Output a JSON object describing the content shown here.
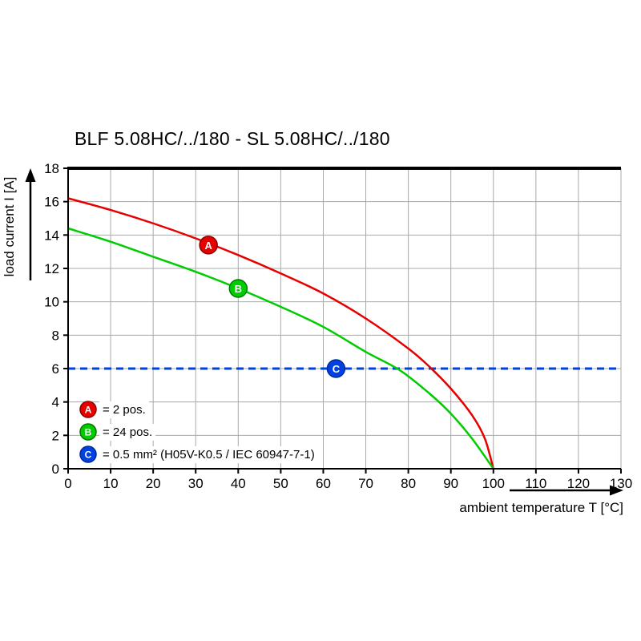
{
  "title": "BLF 5.08HC/../180 - SL 5.08HC/../180",
  "chart_data": {
    "type": "line",
    "title": "BLF 5.08HC/../180 - SL 5.08HC/../180",
    "xlabel": "ambient temperature T [°C]",
    "ylabel": "load current I [A]",
    "xlim": [
      0,
      130
    ],
    "ylim": [
      0,
      18
    ],
    "xticks": [
      0,
      10,
      20,
      30,
      40,
      50,
      60,
      70,
      80,
      90,
      100,
      110,
      120,
      130
    ],
    "yticks": [
      0,
      2,
      4,
      6,
      8,
      10,
      12,
      14,
      16,
      18
    ],
    "grid": true,
    "grid_color": "#a8a8a8",
    "axis_color": "#000000",
    "legend_position": "inside-bottom-left",
    "series": [
      {
        "name": "A",
        "legend_label": "= 2 pos.",
        "color": "#e60000",
        "marker_edge": "#8f0000",
        "style": "solid",
        "marker_at": [
          33,
          13.4
        ],
        "points": [
          [
            0,
            16.2
          ],
          [
            10,
            15.5
          ],
          [
            20,
            14.7
          ],
          [
            30,
            13.8
          ],
          [
            40,
            12.8
          ],
          [
            50,
            11.7
          ],
          [
            60,
            10.5
          ],
          [
            70,
            9.0
          ],
          [
            80,
            7.2
          ],
          [
            85,
            6.1
          ],
          [
            90,
            4.8
          ],
          [
            95,
            3.2
          ],
          [
            98,
            1.8
          ],
          [
            100,
            0
          ]
        ]
      },
      {
        "name": "B",
        "legend_label": "= 24 pos.",
        "color": "#00cc00",
        "marker_edge": "#007a00",
        "style": "solid",
        "marker_at": [
          40,
          10.8
        ],
        "points": [
          [
            0,
            14.4
          ],
          [
            10,
            13.6
          ],
          [
            20,
            12.7
          ],
          [
            30,
            11.8
          ],
          [
            40,
            10.8
          ],
          [
            50,
            9.7
          ],
          [
            60,
            8.5
          ],
          [
            70,
            7.0
          ],
          [
            78,
            5.9
          ],
          [
            85,
            4.5
          ],
          [
            90,
            3.3
          ],
          [
            95,
            1.8
          ],
          [
            100,
            0
          ]
        ]
      },
      {
        "name": "C",
        "legend_label": "= 0.5 mm² (H05V-K0.5 / IEC 60947-7-1)",
        "color": "#0041e0",
        "marker_edge": "#002b9e",
        "style": "dashed",
        "marker_at": [
          63,
          6
        ],
        "points": [
          [
            0,
            6
          ],
          [
            130,
            6
          ]
        ]
      }
    ]
  }
}
